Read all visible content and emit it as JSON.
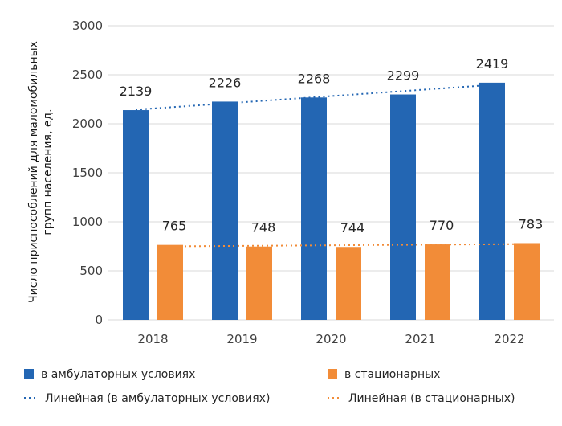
{
  "chart_data": {
    "type": "bar",
    "categories": [
      "2018",
      "2019",
      "2020",
      "2021",
      "2022"
    ],
    "ylabel": "Число приспособлений для маломобильных групп населения, ед.",
    "ylim": [
      0,
      3000
    ],
    "yticks": [
      0,
      500,
      1000,
      1500,
      2000,
      2500,
      3000
    ],
    "grid": true,
    "legend_position": "bottom",
    "series": [
      {
        "name": "в амбулаторных условиях",
        "values": [
          2139,
          2226,
          2268,
          2299,
          2419
        ],
        "color": "#2366b3"
      },
      {
        "name": "в стационарных",
        "values": [
          765,
          748,
          744,
          770,
          783
        ],
        "color": "#f28c38"
      }
    ],
    "trendlines": [
      {
        "name": "Линейная (в амбулаторных условиях)",
        "series": 0,
        "color": "#2366b3",
        "style": "dotted"
      },
      {
        "name": "Линейная (в стационарных)",
        "series": 1,
        "color": "#f28c38",
        "style": "dotted"
      }
    ]
  }
}
